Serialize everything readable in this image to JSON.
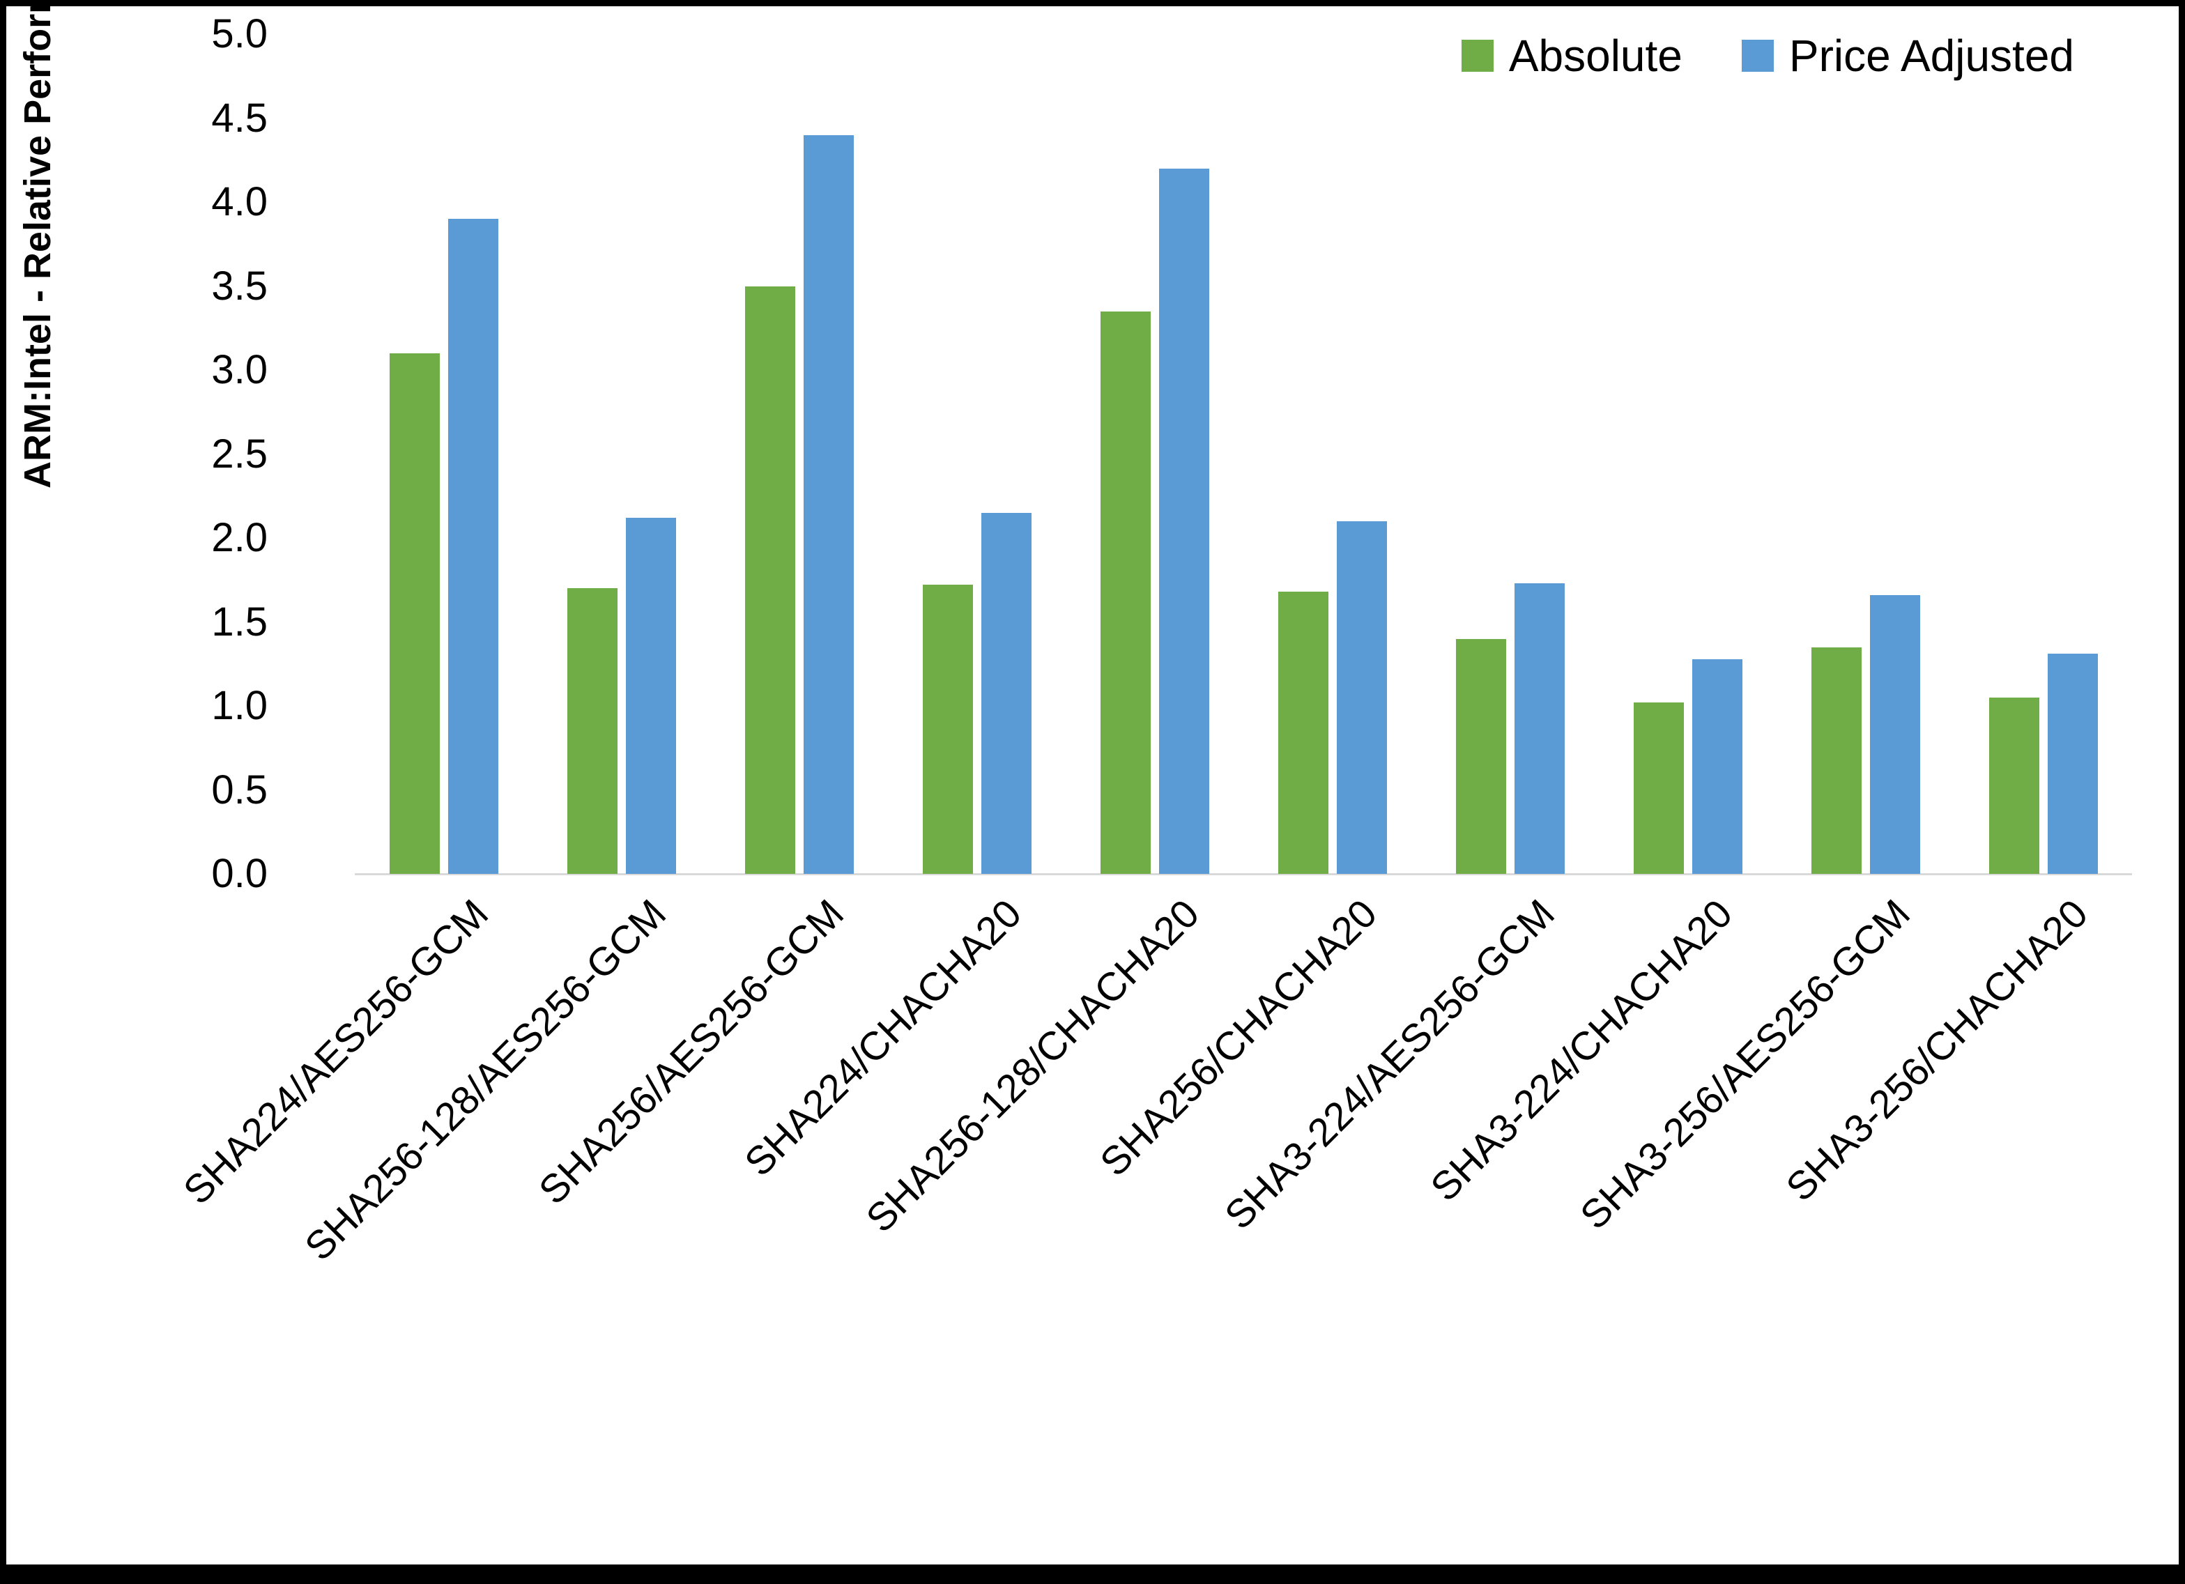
{
  "chart_data": {
    "type": "bar",
    "title": "",
    "xlabel": "",
    "ylabel": "ARM:Intel - Relative Performance",
    "ylim": [
      0,
      5
    ],
    "ytick_step": 0.5,
    "ytick_format_decimals": 1,
    "grid": false,
    "legend_position": "top-right",
    "categories": [
      "SHA224/AES256-GCM",
      "SHA256-128/AES256-GCM",
      "SHA256/AES256-GCM",
      "SHA224/CHACHA20",
      "SHA256-128/CHACHA20",
      "SHA256/CHACHA20",
      "SHA3-224/AES256-GCM",
      "SHA3-224/CHACHA20",
      "SHA3-256/AES256-GCM",
      "SHA3-256/CHACHA20"
    ],
    "series": [
      {
        "name": "Absolute",
        "color": "#70AD47",
        "values": [
          3.1,
          1.7,
          3.5,
          1.72,
          3.35,
          1.68,
          1.4,
          1.02,
          1.35,
          1.05
        ]
      },
      {
        "name": "Price Adjusted",
        "color": "#5B9BD5",
        "values": [
          3.9,
          2.12,
          4.4,
          2.15,
          4.2,
          2.1,
          1.73,
          1.28,
          1.66,
          1.31
        ]
      }
    ],
    "colors": {
      "axis_line": "#d9d9d9",
      "text": "#000000",
      "background": "#ffffff",
      "border": "#000000"
    }
  }
}
